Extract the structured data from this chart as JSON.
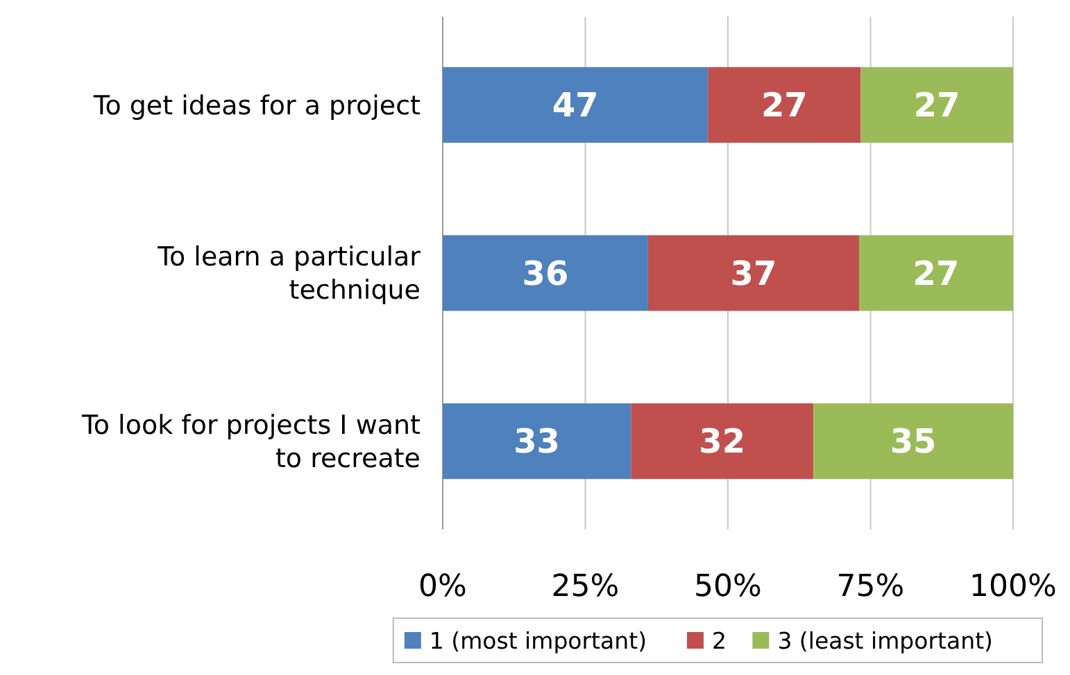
{
  "chart_data": {
    "type": "bar",
    "orientation": "horizontal",
    "stacked": true,
    "categories": [
      "To get ideas for a project",
      "To learn a particular technique",
      "To look for projects I want to recreate"
    ],
    "series": [
      {
        "name": "1 (most important)",
        "color": "#4f81bd",
        "values": [
          46.5,
          36,
          33
        ],
        "value_labels": [
          "47",
          "36",
          "33"
        ]
      },
      {
        "name": "2",
        "color": "#c0504d",
        "values": [
          26.8,
          37,
          32
        ],
        "value_labels": [
          "27",
          "37",
          "32"
        ]
      },
      {
        "name": "3 (least important)",
        "color": "#9bbb59",
        "values": [
          26.7,
          27,
          35
        ],
        "value_labels": [
          "27",
          "27",
          "35"
        ]
      }
    ],
    "xlim": [
      0,
      100
    ],
    "xticks": [
      {
        "value": 0,
        "label": "0%"
      },
      {
        "value": 25,
        "label": "25%"
      },
      {
        "value": 50,
        "label": "50%"
      },
      {
        "value": 75,
        "label": "75%"
      },
      {
        "value": 100,
        "label": "100%"
      }
    ],
    "grid": "x",
    "legend": "bottom"
  }
}
